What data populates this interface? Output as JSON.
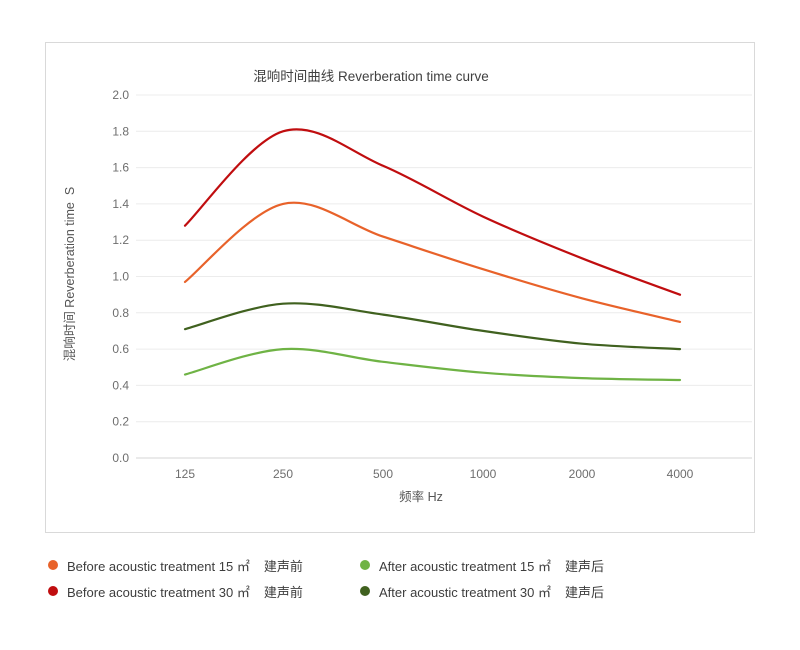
{
  "chart_data": {
    "type": "line",
    "title": "混响时间曲线  Reverberation time curve",
    "xlabel": "频率 Hz",
    "ylabel": "混响时间 Reverberation time  S",
    "x_categories": [
      "125",
      "250",
      "500",
      "1000",
      "2000",
      "4000"
    ],
    "y_tick_labels": [
      "2.0",
      "1.8",
      "1.6",
      "1.4",
      "1.2",
      "1.0",
      "0.8",
      "0.6",
      "0.4",
      "0.2",
      "0.0"
    ],
    "ylim": [
      0.0,
      2.0
    ],
    "y_step": 0.2,
    "grid": "horizontal",
    "legend_position": "bottom",
    "line_smoothing": "spline",
    "series": [
      {
        "name_en": "Before acoustic treatment 15 ㎡",
        "name_zh": "建声前",
        "color": "#e8622a",
        "values": [
          0.97,
          1.4,
          1.22,
          1.04,
          0.88,
          0.75
        ]
      },
      {
        "name_en": "Before acoustic treatment 30 ㎡",
        "name_zh": "建声前",
        "color": "#c00d0f",
        "values": [
          1.28,
          1.8,
          1.61,
          1.33,
          1.1,
          0.9
        ]
      },
      {
        "name_en": "After acoustic treatment 15 ㎡",
        "name_zh": "建声后",
        "color": "#6fb345",
        "values": [
          0.46,
          0.6,
          0.53,
          0.47,
          0.44,
          0.43
        ]
      },
      {
        "name_en": "After acoustic treatment 30 ㎡",
        "name_zh": "建声后",
        "color": "#40611f",
        "values": [
          0.71,
          0.85,
          0.79,
          0.7,
          0.63,
          0.6
        ]
      }
    ]
  }
}
